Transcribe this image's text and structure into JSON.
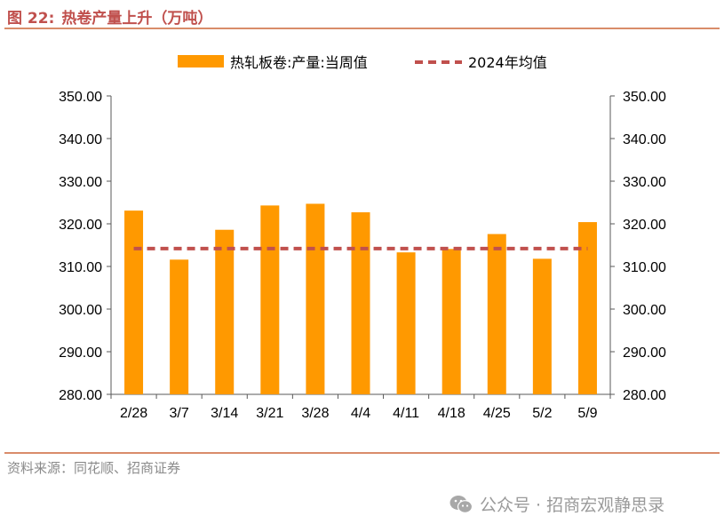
{
  "figure": {
    "label": "图 22:",
    "title": "热卷产量上升（万吨）",
    "source": "资料来源：同花顺、招商证券",
    "watermark": "公众号 · 招商宏观静思录"
  },
  "colors": {
    "bar": "#ff9900",
    "average_line": "#c0504d",
    "header": "#c0504d",
    "rule": "#d98c6a"
  },
  "chart_data": {
    "type": "bar",
    "categories": [
      "2/28",
      "3/7",
      "3/14",
      "3/21",
      "3/28",
      "4/4",
      "4/11",
      "4/18",
      "4/25",
      "5/2",
      "5/9"
    ],
    "series": [
      {
        "name": "热轧板卷:产量:当周值",
        "type": "bar",
        "values": [
          323.1,
          311.6,
          318.6,
          324.3,
          324.7,
          322.7,
          313.3,
          314.1,
          317.6,
          311.8,
          320.4
        ]
      },
      {
        "name": "2024年均值",
        "type": "line",
        "style": "dashed",
        "values": [
          314.2,
          314.2,
          314.2,
          314.2,
          314.2,
          314.2,
          314.2,
          314.2,
          314.2,
          314.2,
          314.2
        ]
      }
    ],
    "ylim": [
      280,
      350
    ],
    "yticks": [
      "280.00",
      "290.00",
      "300.00",
      "310.00",
      "320.00",
      "330.00",
      "340.00",
      "350.00"
    ],
    "secondary_yticks": [
      "280.00",
      "290.00",
      "300.00",
      "310.00",
      "320.00",
      "330.00",
      "340.00",
      "350.00"
    ],
    "grid": false,
    "legend_position": "top"
  }
}
